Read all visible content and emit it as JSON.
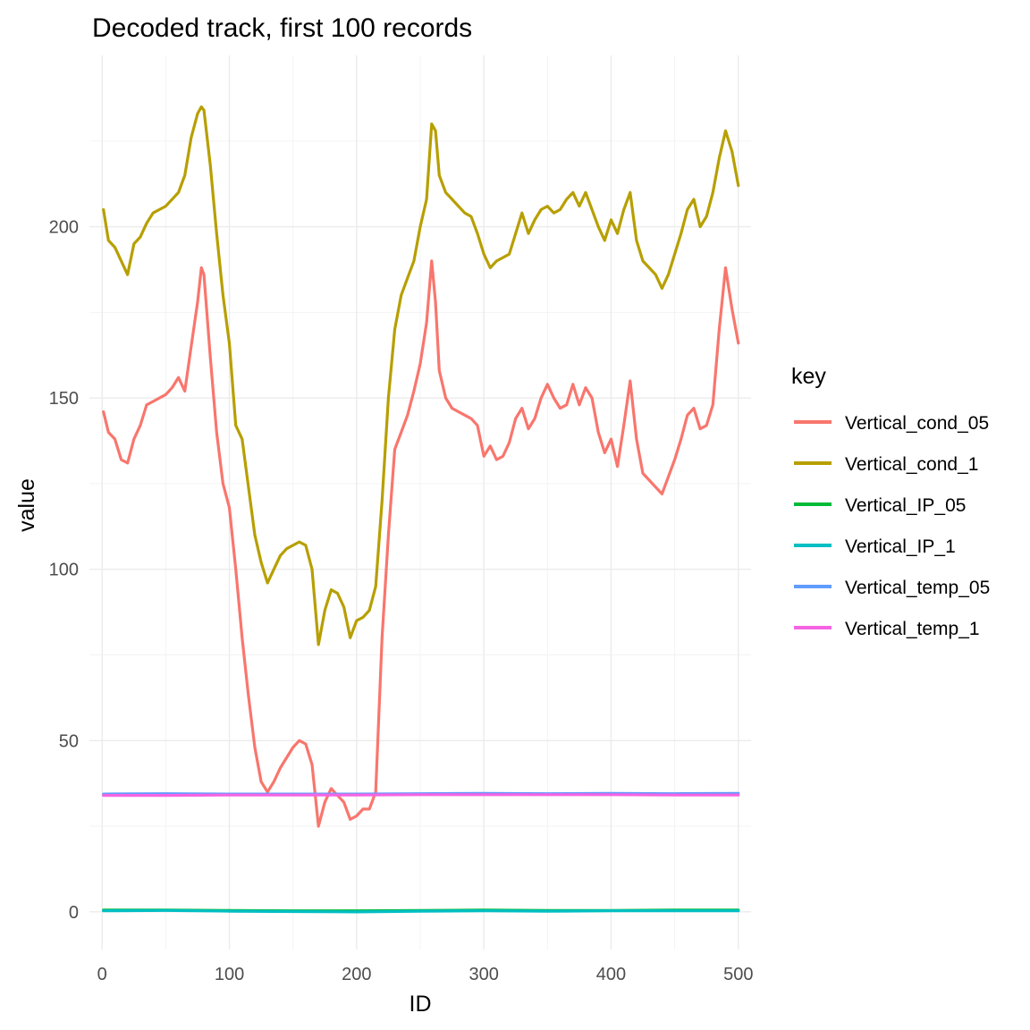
{
  "chart_data": {
    "type": "line",
    "title": "Decoded track, first 100 records",
    "xlabel": "ID",
    "ylabel": "value",
    "xlim": [
      -10,
      510
    ],
    "ylim": [
      -11,
      250
    ],
    "x_ticks": [
      0,
      100,
      200,
      300,
      400,
      500
    ],
    "y_ticks": [
      0,
      50,
      100,
      150,
      200
    ],
    "legend": {
      "title": "key",
      "position": "right"
    },
    "series": [
      {
        "name": "Vertical_cond_05",
        "color": "#F8766D",
        "x": [
          1,
          5,
          10,
          15,
          20,
          25,
          30,
          35,
          40,
          45,
          50,
          55,
          60,
          65,
          70,
          75,
          78,
          80,
          85,
          90,
          95,
          100,
          105,
          110,
          115,
          120,
          125,
          130,
          135,
          140,
          145,
          150,
          155,
          160,
          165,
          170,
          175,
          180,
          185,
          190,
          195,
          200,
          205,
          210,
          215,
          220,
          225,
          230,
          235,
          240,
          245,
          250,
          255,
          259,
          262,
          265,
          270,
          275,
          280,
          285,
          290,
          295,
          300,
          305,
          310,
          315,
          320,
          325,
          330,
          335,
          340,
          345,
          350,
          355,
          360,
          365,
          370,
          375,
          380,
          385,
          390,
          395,
          400,
          405,
          410,
          415,
          420,
          425,
          430,
          435,
          440,
          445,
          450,
          455,
          460,
          465,
          470,
          475,
          480,
          485,
          490,
          495,
          500
        ],
        "values": [
          146,
          140,
          138,
          132,
          131,
          138,
          142,
          148,
          149,
          150,
          151,
          153,
          156,
          152,
          165,
          178,
          188,
          186,
          162,
          140,
          125,
          118,
          100,
          80,
          63,
          48,
          38,
          35,
          38,
          42,
          45,
          48,
          50,
          49,
          43,
          25,
          32,
          36,
          34,
          32,
          27,
          28,
          30,
          30,
          35,
          80,
          110,
          135,
          140,
          145,
          152,
          160,
          172,
          190,
          178,
          158,
          150,
          147,
          146,
          145,
          144,
          142,
          133,
          136,
          132,
          133,
          137,
          144,
          147,
          141,
          144,
          150,
          154,
          150,
          147,
          148,
          154,
          148,
          153,
          150,
          140,
          134,
          138,
          130,
          142,
          155,
          138,
          128,
          126,
          124,
          122,
          127,
          132,
          138,
          145,
          147,
          141,
          142,
          148,
          170,
          188,
          176,
          166
        ]
      },
      {
        "name": "Vertical_cond_1",
        "color": "#B79F00",
        "x": [
          1,
          5,
          10,
          15,
          20,
          25,
          30,
          35,
          40,
          45,
          50,
          55,
          60,
          65,
          70,
          75,
          78,
          80,
          85,
          90,
          95,
          100,
          105,
          110,
          115,
          120,
          125,
          130,
          135,
          140,
          145,
          150,
          155,
          160,
          165,
          170,
          175,
          180,
          185,
          190,
          195,
          200,
          205,
          210,
          215,
          220,
          225,
          230,
          235,
          240,
          245,
          250,
          255,
          259,
          262,
          265,
          270,
          275,
          280,
          285,
          290,
          295,
          300,
          305,
          310,
          315,
          320,
          325,
          330,
          335,
          340,
          345,
          350,
          355,
          360,
          365,
          370,
          375,
          380,
          385,
          390,
          395,
          400,
          405,
          410,
          415,
          420,
          425,
          430,
          435,
          440,
          445,
          450,
          455,
          460,
          465,
          470,
          475,
          480,
          485,
          490,
          495,
          500
        ],
        "values": [
          205,
          196,
          194,
          190,
          186,
          195,
          197,
          201,
          204,
          205,
          206,
          208,
          210,
          215,
          226,
          233,
          235,
          234,
          218,
          198,
          180,
          166,
          142,
          138,
          124,
          110,
          102,
          96,
          100,
          104,
          106,
          107,
          108,
          107,
          100,
          78,
          88,
          94,
          93,
          89,
          80,
          85,
          86,
          88,
          95,
          120,
          150,
          170,
          180,
          185,
          190,
          200,
          208,
          230,
          228,
          215,
          210,
          208,
          206,
          204,
          203,
          198,
          192,
          188,
          190,
          191,
          192,
          198,
          204,
          198,
          202,
          205,
          206,
          204,
          205,
          208,
          210,
          206,
          210,
          205,
          200,
          196,
          202,
          198,
          205,
          210,
          196,
          190,
          188,
          186,
          182,
          186,
          192,
          198,
          205,
          208,
          200,
          203,
          210,
          220,
          228,
          222,
          212
        ]
      },
      {
        "name": "Vertical_IP_05",
        "color": "#00BA38",
        "x": [
          1,
          50,
          100,
          150,
          200,
          250,
          300,
          350,
          400,
          450,
          500
        ],
        "values": [
          0.5,
          0.5,
          0.4,
          0.3,
          0.3,
          0.4,
          0.5,
          0.4,
          0.4,
          0.5,
          0.5
        ]
      },
      {
        "name": "Vertical_IP_1",
        "color": "#00BFC4",
        "x": [
          1,
          50,
          100,
          150,
          200,
          250,
          300,
          350,
          400,
          450,
          500
        ],
        "values": [
          0.3,
          0.4,
          0.2,
          0.1,
          0.0,
          0.2,
          0.3,
          0.2,
          0.3,
          0.3,
          0.3
        ]
      },
      {
        "name": "Vertical_temp_05",
        "color": "#619CFF",
        "x": [
          1,
          50,
          100,
          150,
          200,
          250,
          300,
          350,
          400,
          450,
          500
        ],
        "values": [
          34.4,
          34.5,
          34.4,
          34.4,
          34.4,
          34.5,
          34.6,
          34.5,
          34.6,
          34.5,
          34.6
        ]
      },
      {
        "name": "Vertical_temp_1",
        "color": "#F564E3",
        "x": [
          1,
          50,
          100,
          150,
          200,
          250,
          300,
          350,
          400,
          450,
          500
        ],
        "values": [
          34.0,
          34.0,
          34.1,
          34.1,
          34.1,
          34.2,
          34.2,
          34.2,
          34.2,
          34.1,
          34.1
        ]
      }
    ]
  }
}
